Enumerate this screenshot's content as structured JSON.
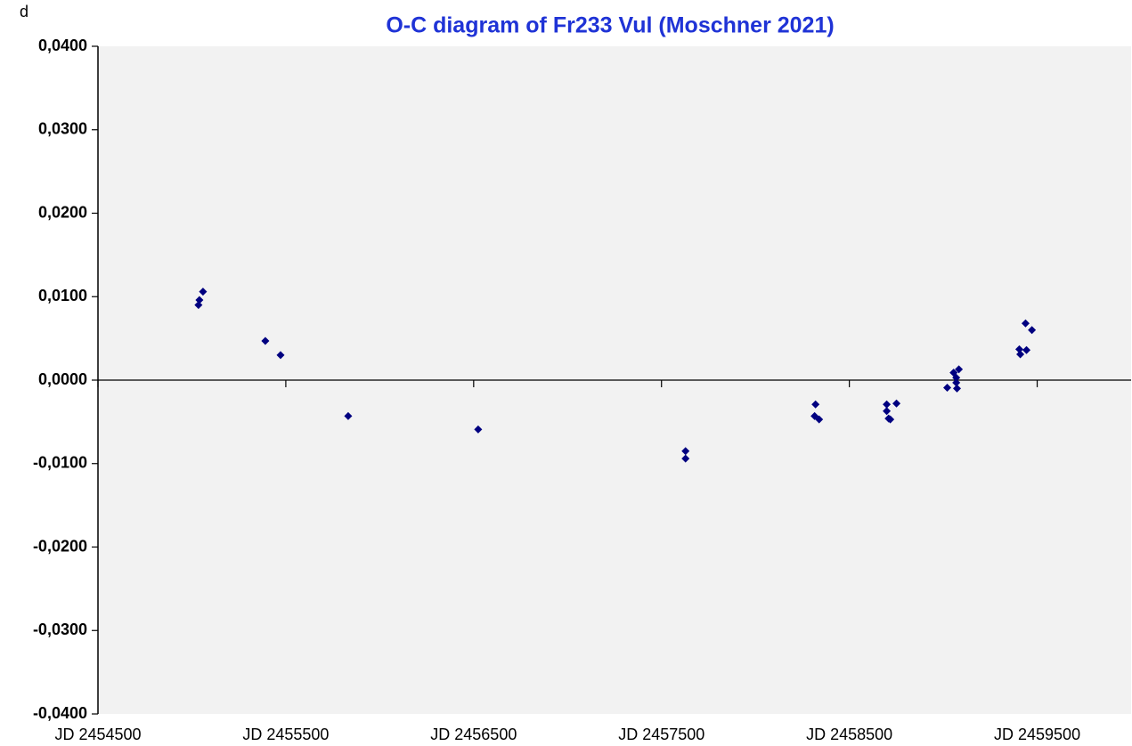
{
  "chart_data": {
    "type": "scatter",
    "title": "O-C diagram of  Fr233 Vul (Moschner 2021)",
    "y_label": "d",
    "series": [
      {
        "name": "O-C",
        "color": "#000080",
        "x": [
          2455035,
          2455040,
          2455059,
          2455391,
          2455472,
          2455832,
          2456524,
          2457628,
          2457628,
          2458320,
          2458315,
          2458339,
          2458699,
          2458699,
          2458709,
          2458718,
          2458751,
          2459021,
          2459055,
          2459069,
          2459069,
          2459073,
          2459083,
          2459405,
          2459410,
          2459438,
          2459443,
          2459472
        ],
        "values": [
          0.009,
          0.0096,
          0.0106,
          0.0047,
          0.003,
          -0.0043,
          -0.0059,
          -0.0085,
          -0.0094,
          -0.0029,
          -0.0043,
          -0.0047,
          -0.0029,
          -0.0037,
          -0.0046,
          -0.0047,
          -0.0028,
          -0.0009,
          0.0009,
          0.0003,
          -0.0003,
          -0.001,
          0.0013,
          0.0037,
          0.0031,
          0.0068,
          0.0036,
          0.006
        ]
      }
    ],
    "xlim": [
      2454500,
      2460000
    ],
    "xticks": [
      {
        "value": 2454500,
        "label": "JD 2454500"
      },
      {
        "value": 2455500,
        "label": "JD 2455500"
      },
      {
        "value": 2456500,
        "label": "JD 2456500"
      },
      {
        "value": 2457500,
        "label": "JD 2457500"
      },
      {
        "value": 2458500,
        "label": "JD 2458500"
      },
      {
        "value": 2459500,
        "label": "JD 2459500"
      }
    ],
    "ylim": [
      -0.04,
      0.04
    ],
    "yticks": [
      {
        "value": 0.04,
        "label": "0,0400"
      },
      {
        "value": 0.03,
        "label": "0,0300"
      },
      {
        "value": 0.02,
        "label": "0,0200"
      },
      {
        "value": 0.01,
        "label": "0,0100"
      },
      {
        "value": 0,
        "label": "0,0000"
      },
      {
        "value": -0.01,
        "label": "-0,0100"
      },
      {
        "value": -0.02,
        "label": "-0,0200"
      },
      {
        "value": -0.03,
        "label": "-0,0300"
      },
      {
        "value": -0.04,
        "label": "-0,0400"
      }
    ],
    "grid": false
  }
}
